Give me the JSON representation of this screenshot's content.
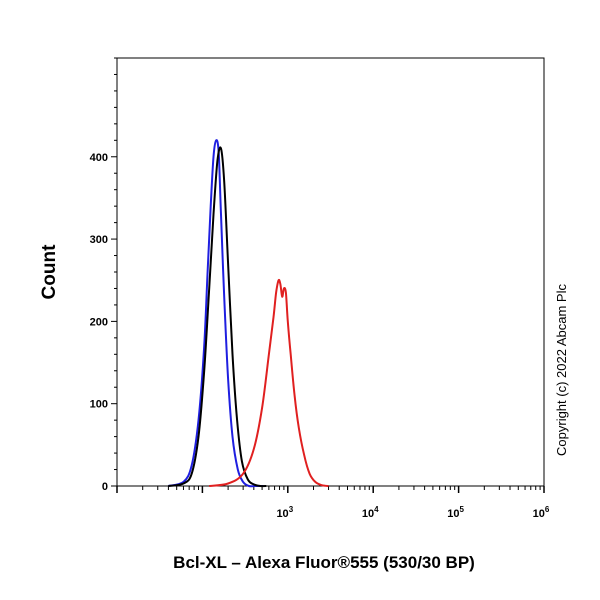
{
  "chart_data": {
    "type": "line",
    "title": "",
    "xlabel": "Bcl-XL – Alexa Fluor®555 (530/30 BP)",
    "ylabel": "Count",
    "x_scale": "log",
    "xlim": [
      10,
      1000000
    ],
    "ylim": [
      0,
      520
    ],
    "y_ticks": [
      0,
      100,
      200,
      300,
      400
    ],
    "x_tick_labels": [
      {
        "base": "10",
        "exp": "3",
        "value": 1000
      },
      {
        "base": "10",
        "exp": "4",
        "value": 10000
      },
      {
        "base": "10",
        "exp": "5",
        "value": 100000
      },
      {
        "base": "10",
        "exp": "6",
        "value": 1000000
      }
    ],
    "grid": false,
    "legend": "none",
    "annotation": "Copyright (c) 2022 Abcam Plc",
    "series": [
      {
        "color": "#1f1fe0",
        "x": [
          40,
          60,
          75,
          90,
          105,
          115,
          125,
          135,
          145,
          155,
          165,
          180,
          200,
          225,
          260,
          300,
          350,
          420,
          520
        ],
        "y": [
          0,
          5,
          25,
          80,
          170,
          260,
          340,
          400,
          420,
          405,
          330,
          230,
          130,
          60,
          20,
          5,
          0,
          0,
          0
        ]
      },
      {
        "color": "#000000",
        "x": [
          40,
          60,
          75,
          90,
          105,
          120,
          135,
          150,
          165,
          180,
          200,
          225,
          255,
          290,
          340,
          400,
          480,
          560
        ],
        "y": [
          0,
          3,
          15,
          60,
          140,
          240,
          330,
          395,
          410,
          370,
          270,
          160,
          80,
          30,
          8,
          2,
          0,
          0
        ]
      },
      {
        "color": "#e02020",
        "x": [
          120,
          200,
          300,
          400,
          500,
          600,
          680,
          730,
          780,
          820,
          860,
          900,
          950,
          1000,
          1080,
          1200,
          1350,
          1550,
          1800,
          2100,
          2500,
          3000
        ],
        "y": [
          0,
          3,
          15,
          45,
          95,
          160,
          205,
          235,
          250,
          245,
          230,
          240,
          235,
          200,
          160,
          110,
          70,
          38,
          15,
          5,
          1,
          0
        ]
      }
    ]
  }
}
